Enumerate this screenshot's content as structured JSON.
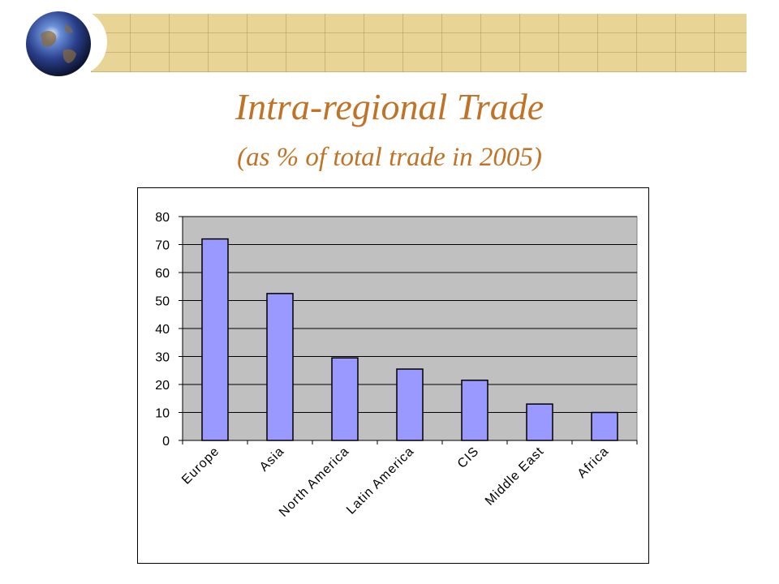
{
  "slide": {
    "title": "Intra-regional Trade",
    "subtitle": "(as % of total trade in 2005)"
  },
  "theme": {
    "title_color": "#c07326",
    "banner_color": "#e8d596",
    "plot_background": "#c0c0c0",
    "bar_color": "#9999ff"
  },
  "decor": {
    "logo_icon": "globe-icon"
  },
  "chart_data": {
    "type": "bar",
    "categories": [
      "Europe",
      "Asia",
      "North America",
      "Latin America",
      "CIS",
      "Middle East",
      "Africa"
    ],
    "values": [
      72,
      52.5,
      29.5,
      25.5,
      21.5,
      13,
      10
    ],
    "ylim": [
      0,
      80
    ],
    "yticks": [
      0,
      10,
      20,
      30,
      40,
      50,
      60,
      70,
      80
    ],
    "grid": true,
    "legend": "none"
  }
}
